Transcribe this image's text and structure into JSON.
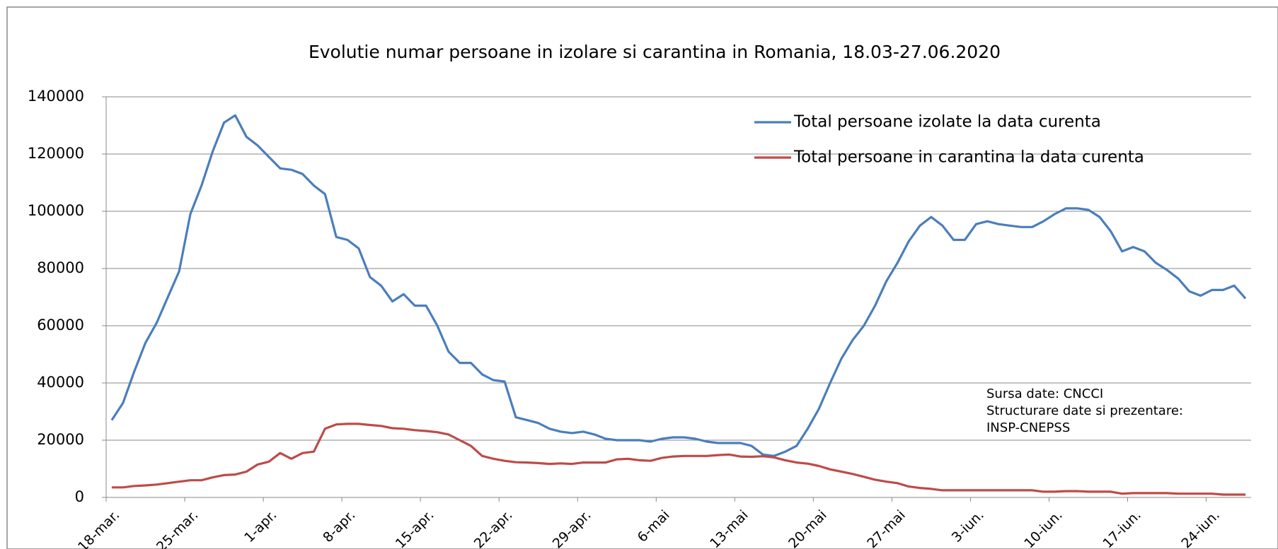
{
  "chart_data": {
    "type": "line",
    "title": "Evolutie numar persoane in izolare si carantina in Romania, 18.03-27.06.2020",
    "categories": [
      "18-mar.",
      null,
      null,
      null,
      null,
      null,
      null,
      "25-mar.",
      null,
      null,
      null,
      null,
      null,
      null,
      "1-apr.",
      null,
      null,
      null,
      null,
      null,
      null,
      "8-apr.",
      null,
      null,
      null,
      null,
      null,
      null,
      "15-apr.",
      null,
      null,
      null,
      null,
      null,
      null,
      "22-apr.",
      null,
      null,
      null,
      null,
      null,
      null,
      "29-apr.",
      null,
      null,
      null,
      null,
      null,
      null,
      "6-mai",
      null,
      null,
      null,
      null,
      null,
      null,
      "13-mai",
      null,
      null,
      null,
      null,
      null,
      null,
      "20-mai",
      null,
      null,
      null,
      null,
      null,
      null,
      "27-mai",
      null,
      null,
      null,
      null,
      null,
      null,
      "3-iun.",
      null,
      null,
      null,
      null,
      null,
      null,
      "10-iun.",
      null,
      null,
      null,
      null,
      null,
      null,
      "17-iun.",
      null,
      null,
      null,
      null,
      null,
      null,
      "24-iun.",
      null,
      null,
      null
    ],
    "series": [
      {
        "name": "Total persoane izolate la data curenta",
        "color": "#4a7ebb",
        "values": [
          27000,
          33000,
          44000,
          54000,
          61000,
          70000,
          79000,
          99000,
          109000,
          121000,
          131000,
          133500,
          126000,
          123000,
          119000,
          115000,
          114500,
          113000,
          109000,
          106000,
          91000,
          90000,
          87000,
          77000,
          74000,
          68500,
          71000,
          67000,
          67000,
          60000,
          51000,
          47000,
          47000,
          43000,
          41000,
          40500,
          28000,
          27000,
          26000,
          24000,
          23000,
          22500,
          23000,
          22000,
          20500,
          20000,
          20000,
          20000,
          19500,
          20500,
          21000,
          21000,
          20500,
          19500,
          19000,
          19000,
          19000,
          18000,
          15000,
          14500,
          16000,
          18000,
          24000,
          31000,
          40000,
          48500,
          55000,
          60000,
          67000,
          75500,
          82000,
          89500,
          95000,
          98000,
          95000,
          90000,
          90000,
          95500,
          96500,
          95500,
          95000,
          94500,
          94500,
          96500,
          99000,
          101000,
          101000,
          100500,
          98000,
          93000,
          86000,
          87500,
          86000,
          82000,
          79500,
          76500,
          72000,
          70500,
          72500,
          72500,
          74000,
          69500
        ]
      },
      {
        "name": "Total persoane in carantina la data curenta",
        "color": "#be4b48",
        "values": [
          3500,
          3500,
          4000,
          4200,
          4500,
          5000,
          5500,
          6000,
          6000,
          7000,
          7800,
          8000,
          9000,
          11500,
          12500,
          15500,
          13500,
          15500,
          16000,
          24000,
          25500,
          25700,
          25700,
          25300,
          25000,
          24200,
          24000,
          23500,
          23200,
          22800,
          22000,
          20000,
          18000,
          14500,
          13500,
          12800,
          12300,
          12200,
          12000,
          11700,
          11900,
          11700,
          12200,
          12200,
          12200,
          13300,
          13500,
          13000,
          12800,
          13800,
          14300,
          14500,
          14500,
          14500,
          14800,
          15000,
          14300,
          14200,
          14400,
          14000,
          13000,
          12200,
          11800,
          11000,
          9800,
          9000,
          8200,
          7200,
          6200,
          5500,
          5000,
          3800,
          3300,
          3000,
          2500,
          2500,
          2500,
          2500,
          2500,
          2500,
          2500,
          2500,
          2500,
          2000,
          2000,
          2200,
          2200,
          2000,
          2000,
          2000,
          1300,
          1500,
          1500,
          1500,
          1500,
          1300,
          1300,
          1300,
          1300,
          1000,
          1000,
          1000
        ]
      }
    ],
    "ylim": [
      0,
      140000
    ],
    "yticks": [
      0,
      20000,
      40000,
      60000,
      80000,
      100000,
      120000,
      140000
    ],
    "grid": true,
    "legend": "upper right",
    "annotation": [
      "Sursa date: CNCCI",
      "Structurare date si prezentare:",
      "INSP-CNEPSS"
    ]
  }
}
